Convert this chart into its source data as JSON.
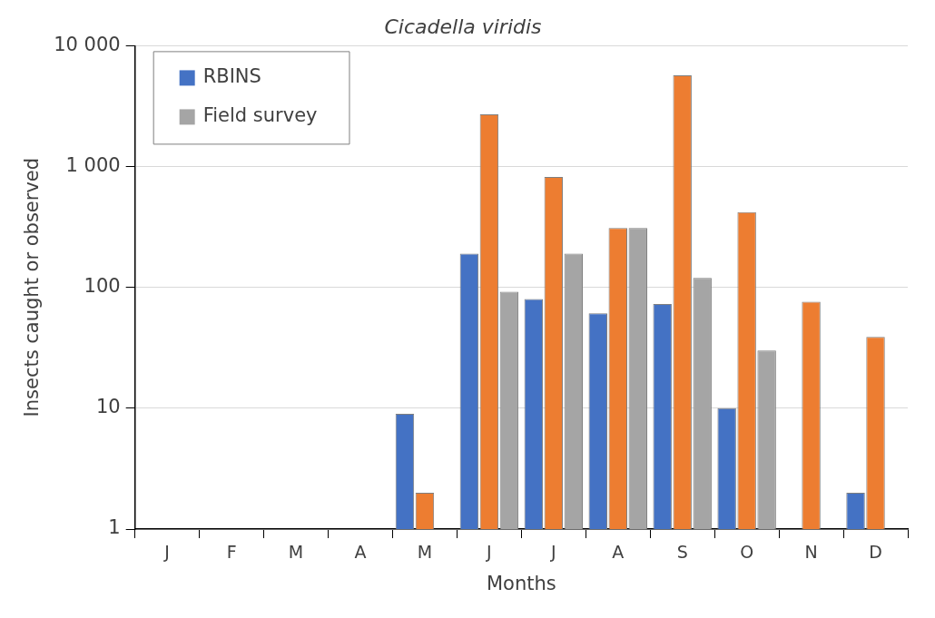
{
  "chart_data": {
    "type": "bar",
    "title": "Cicadella viridis",
    "xlabel": "Months",
    "ylabel": "Insects caught or observed",
    "categories": [
      "J",
      "F",
      "M",
      "A",
      "M",
      "J",
      "J",
      "A",
      "S",
      "O",
      "N",
      "D"
    ],
    "series": [
      {
        "name": "RBINS",
        "color": "#4472c4",
        "values": [
          null,
          null,
          null,
          null,
          9,
          190,
          80,
          61,
          73,
          10,
          null,
          2
        ]
      },
      {
        "color": "#ed7d31",
        "values": [
          null,
          null,
          null,
          null,
          2,
          2700,
          820,
          310,
          5700,
          420,
          76,
          39
        ]
      },
      {
        "name": "Field survey",
        "color": "#a5a5a5",
        "values": [
          null,
          null,
          null,
          null,
          null,
          92,
          190,
          310,
          120,
          30,
          null,
          null
        ]
      }
    ],
    "log": "y",
    "ylim": [
      1,
      10000
    ],
    "yticks": [
      1,
      10,
      100,
      {
        "value": 1000,
        "label": "1 000"
      },
      {
        "value": 10000,
        "label": "10 000"
      }
    ],
    "grid": "y",
    "legend": "top left"
  }
}
